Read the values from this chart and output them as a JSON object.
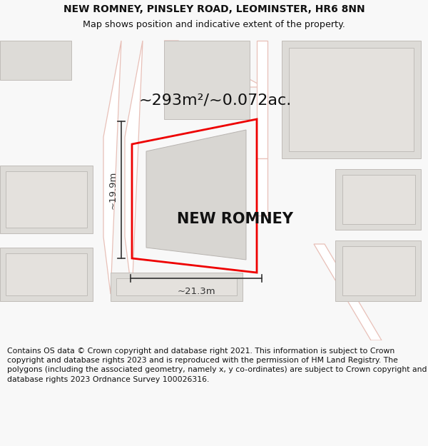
{
  "title_line1": "NEW ROMNEY, PINSLEY ROAD, LEOMINSTER, HR6 8NN",
  "title_line2": "Map shows position and indicative extent of the property.",
  "area_label": "~293m²/~0.072ac.",
  "property_name": "NEW ROMNEY",
  "width_label": "~21.3m",
  "height_label": "~19.9m",
  "footer_text": "Contains OS data © Crown copyright and database right 2021. This information is subject to Crown copyright and database rights 2023 and is reproduced with the permission of HM Land Registry. The polygons (including the associated geometry, namely x, y co-ordinates) are subject to Crown copyright and database rights 2023 Ordnance Survey 100026316.",
  "bg_color": "#f8f8f8",
  "map_bg": "#f0efec",
  "road_color": "#e8c0b8",
  "road_fill": "#ffffff",
  "property_outline_color": "#ee0000",
  "building_fill": "#d8d6d2",
  "building_outline": "#b8b4b0",
  "neighbor_fill": "#dddbd7",
  "neighbor_outline": "#c0bcb8",
  "dim_line_color": "#333333",
  "title_fontsize": 10.0,
  "subtitle_fontsize": 9.2,
  "area_fontsize": 16,
  "property_name_fontsize": 15,
  "dim_fontsize": 9.5,
  "footer_fontsize": 7.8
}
